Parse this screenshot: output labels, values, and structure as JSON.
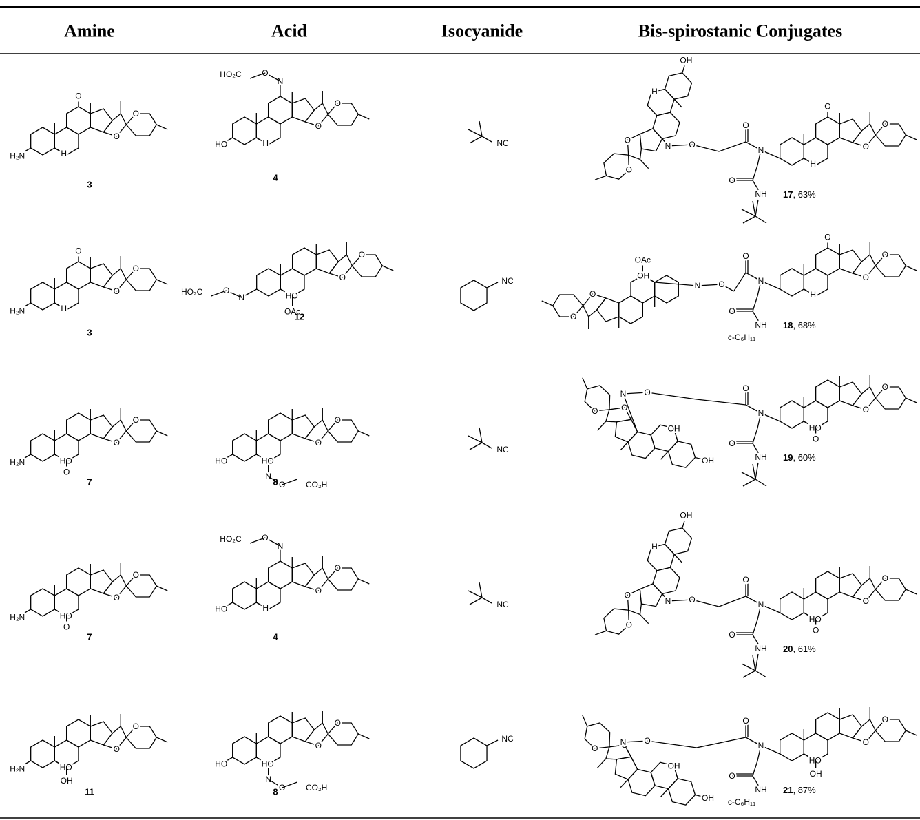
{
  "header": {
    "columns": [
      "Amine",
      "Acid",
      "Isocyanide",
      "Bis-spirostanic Conjugates"
    ]
  },
  "rows": [
    {
      "amine": {
        "id": "3",
        "atoms": [
          "O",
          "O",
          "O",
          "H₂N",
          "H"
        ]
      },
      "acid": {
        "id": "4",
        "atoms": [
          "O",
          "O",
          "N",
          "O",
          "HO₂C",
          "HO",
          "H"
        ]
      },
      "isocyanide": {
        "group": "NC"
      },
      "product": {
        "id": "17",
        "yield": ", 63%",
        "left": [
          "O",
          "O",
          "OH",
          "H"
        ],
        "right": [
          "O",
          "O",
          "O",
          "H"
        ],
        "linker": [
          "N",
          "O",
          "O",
          "N",
          "O",
          "NH"
        ]
      }
    },
    {
      "amine": {
        "id": "3",
        "atoms": [
          "O",
          "O",
          "O",
          "H₂N",
          "H"
        ]
      },
      "acid": {
        "id": "12",
        "atoms": [
          "O",
          "O",
          "N",
          "O",
          "HO₂C",
          "HO",
          "OAc"
        ]
      },
      "isocyanide": {
        "group": "NC"
      },
      "product": {
        "id": "18",
        "yield": ", 68%",
        "left": [
          "O",
          "O",
          "OAc",
          "OH"
        ],
        "right": [
          "O",
          "O",
          "O",
          "H"
        ],
        "linker": [
          "N",
          "O",
          "O",
          "N",
          "O",
          "NH"
        ],
        "substituent": "c-C₆H₁₁"
      }
    },
    {
      "amine": {
        "id": "7",
        "atoms": [
          "O",
          "O",
          "H₂N",
          "HO",
          "O"
        ]
      },
      "acid": {
        "id": "8",
        "atoms": [
          "O",
          "O",
          "N",
          "O",
          "CO₂H",
          "HO",
          "HO"
        ]
      },
      "isocyanide": {
        "group": "NC"
      },
      "product": {
        "id": "19",
        "yield": ", 60%",
        "left": [
          "O",
          "O",
          "OH",
          "OH"
        ],
        "right": [
          "O",
          "O",
          "HO",
          "O"
        ],
        "linker": [
          "N",
          "O",
          "O",
          "N",
          "O",
          "NH"
        ]
      }
    },
    {
      "amine": {
        "id": "7",
        "atoms": [
          "O",
          "O",
          "H₂N",
          "HO",
          "O"
        ]
      },
      "acid": {
        "id": "4",
        "atoms": [
          "O",
          "O",
          "N",
          "O",
          "HO₂C",
          "HO",
          "H"
        ]
      },
      "isocyanide": {
        "group": "NC"
      },
      "product": {
        "id": "20",
        "yield": ", 61%",
        "left": [
          "O",
          "O",
          "OH",
          "H"
        ],
        "right": [
          "O",
          "O",
          "HO",
          "O"
        ],
        "linker": [
          "N",
          "O",
          "O",
          "N",
          "O",
          "NH"
        ]
      }
    },
    {
      "amine": {
        "id": "11",
        "atoms": [
          "O",
          "O",
          "H₂N",
          "HO",
          "OH"
        ]
      },
      "acid": {
        "id": "8",
        "atoms": [
          "O",
          "O",
          "N",
          "O",
          "CO₂H",
          "HO",
          "HO"
        ]
      },
      "isocyanide": {
        "group": "NC"
      },
      "product": {
        "id": "21",
        "yield": ", 87%",
        "left": [
          "O",
          "O",
          "OH",
          "OH"
        ],
        "right": [
          "O",
          "O",
          "HO",
          "OH"
        ],
        "linker": [
          "N",
          "O",
          "O",
          "N",
          "O",
          "NH"
        ],
        "substituent": "c-C₆H₁₁"
      }
    }
  ]
}
